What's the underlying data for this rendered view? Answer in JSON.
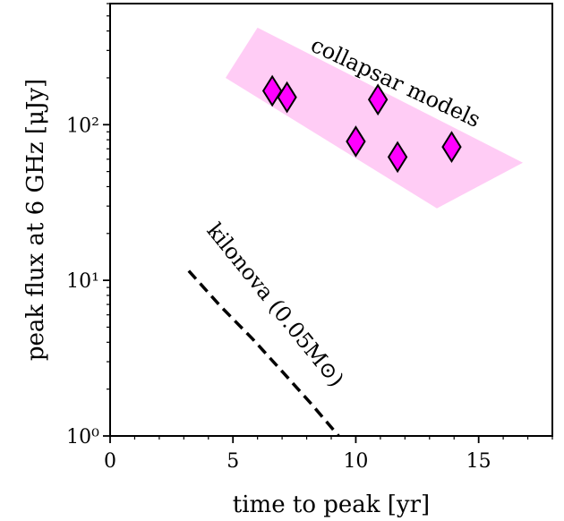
{
  "chart_data": {
    "type": "scatter",
    "x_axis": {
      "label": "time to peak [yr]",
      "range": [
        0,
        18
      ],
      "ticks": [
        0,
        5,
        10,
        15
      ],
      "tick_labels": [
        "0",
        "5",
        "10",
        "15"
      ]
    },
    "y_axis": {
      "label": "peak flux at 6 GHz [μJy]",
      "scale": "log",
      "range": [
        1,
        600
      ],
      "ticks": [
        1,
        10,
        100
      ],
      "tick_labels": [
        "10⁰",
        "10¹",
        "10²"
      ]
    },
    "grid": false,
    "legend": "none",
    "series": [
      {
        "marker": "diamond",
        "color": "#ff00ff",
        "edgecolor": "#000000",
        "points": [
          {
            "x": 6.6,
            "y": 165
          },
          {
            "x": 7.2,
            "y": 150
          },
          {
            "x": 10.0,
            "y": 78
          },
          {
            "x": 10.9,
            "y": 145
          },
          {
            "x": 11.7,
            "y": 62
          },
          {
            "x": 13.9,
            "y": 72
          }
        ]
      }
    ],
    "band": {
      "label": "collapsar models",
      "color": "#ffccf5",
      "polygon": [
        [
          4.7,
          200
        ],
        [
          6.0,
          420
        ],
        [
          16.8,
          57
        ],
        [
          13.3,
          29
        ]
      ]
    },
    "curve": {
      "label": "kilonova (0.05M⊙)",
      "style": "dashed",
      "color": "#000000",
      "points": [
        [
          3.2,
          11.5
        ],
        [
          4.5,
          6.8
        ],
        [
          5.8,
          4.2
        ],
        [
          7.0,
          2.6
        ],
        [
          8.2,
          1.6
        ],
        [
          9.3,
          1.0
        ]
      ]
    },
    "annotations": {
      "collapsar": "collapsar models",
      "kilonova": "kilonova (0.05M⊙)"
    }
  }
}
